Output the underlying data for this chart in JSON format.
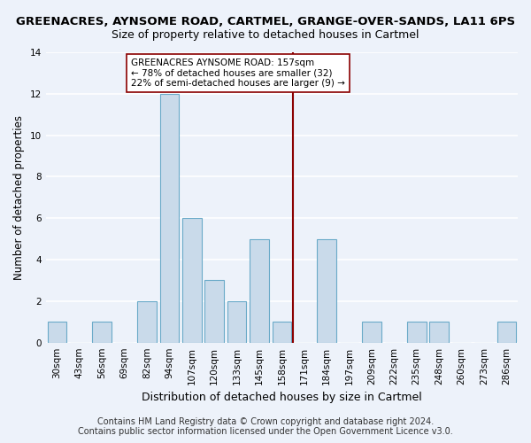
{
  "title1": "GREENACRES, AYNSOME ROAD, CARTMEL, GRANGE-OVER-SANDS, LA11 6PS",
  "title2": "Size of property relative to detached houses in Cartmel",
  "xlabel": "Distribution of detached houses by size in Cartmel",
  "ylabel": "Number of detached properties",
  "categories": [
    "30sqm",
    "43sqm",
    "56sqm",
    "69sqm",
    "82sqm",
    "94sqm",
    "107sqm",
    "120sqm",
    "133sqm",
    "145sqm",
    "158sqm",
    "171sqm",
    "184sqm",
    "197sqm",
    "209sqm",
    "222sqm",
    "235sqm",
    "248sqm",
    "260sqm",
    "273sqm",
    "286sqm"
  ],
  "values": [
    1,
    0,
    1,
    0,
    2,
    12,
    6,
    3,
    2,
    5,
    1,
    0,
    5,
    0,
    1,
    0,
    1,
    1,
    0,
    0,
    1
  ],
  "bar_color": "#c9daea",
  "bar_edge_color": "#6aaac8",
  "vline_x_index": 10,
  "vline_color": "#8b0000",
  "annotation_text": "GREENACRES AYNSOME ROAD: 157sqm\n← 78% of detached houses are smaller (32)\n22% of semi-detached houses are larger (9) →",
  "annotation_box_color": "#ffffff",
  "annotation_box_edge_color": "#8b0000",
  "ylim": [
    0,
    14
  ],
  "yticks": [
    0,
    2,
    4,
    6,
    8,
    10,
    12,
    14
  ],
  "footer": "Contains HM Land Registry data © Crown copyright and database right 2024.\nContains public sector information licensed under the Open Government Licence v3.0.",
  "background_color": "#edf2fa",
  "grid_color": "#ffffff",
  "title1_fontsize": 9.5,
  "title2_fontsize": 9,
  "xlabel_fontsize": 9,
  "ylabel_fontsize": 8.5,
  "tick_fontsize": 7.5,
  "annotation_fontsize": 7.5,
  "footer_fontsize": 7
}
